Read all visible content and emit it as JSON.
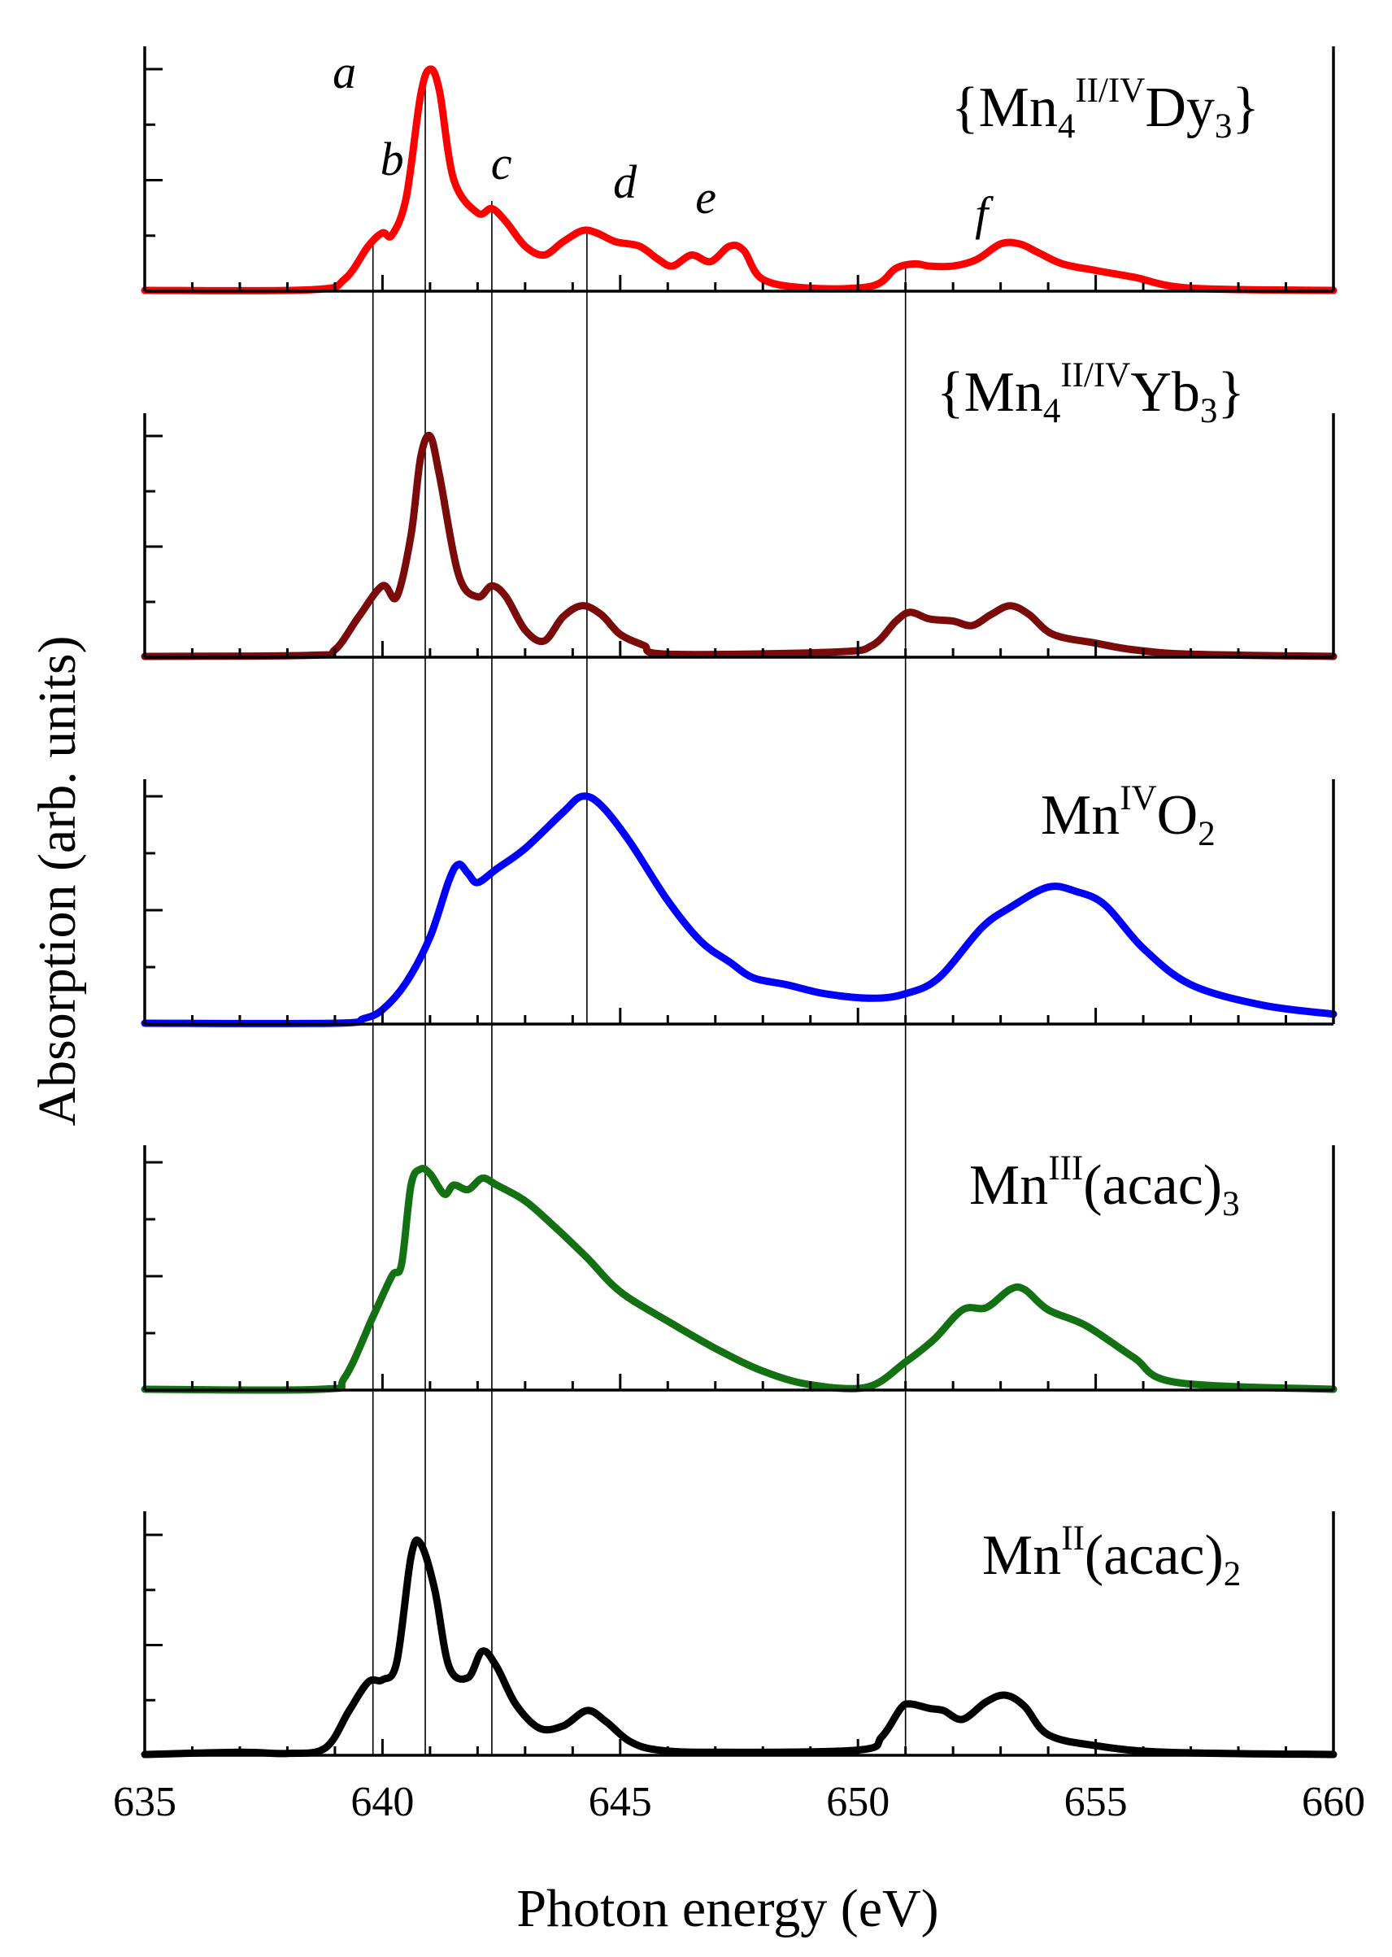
{
  "chart_data": {
    "type": "line",
    "stacked_panels": true,
    "xlabel": "Photon energy (eV)",
    "ylabel": "Absorption (arb. units)",
    "xlim": [
      635,
      660
    ],
    "x_ticks": [
      635,
      640,
      645,
      650,
      655,
      660
    ],
    "x_minor_step": 1,
    "ylim": [
      0,
      1
    ],
    "y_ticks_per_panel": 4,
    "grid": false,
    "reference_lines_eV": [
      639.8,
      640.9,
      642.3,
      644.3,
      651.0
    ],
    "peak_labels": [
      {
        "label": "a",
        "x": 639.2
      },
      {
        "label": "b",
        "x": 640.2
      },
      {
        "label": "c",
        "x": 642.5
      },
      {
        "label": "d",
        "x": 645.1
      },
      {
        "label": "e",
        "x": 646.8
      },
      {
        "label": "f",
        "x": 652.6
      }
    ],
    "series": [
      {
        "name": "{Mn4 II/IV Dy3}",
        "label_parts": {
          "base": "{Mn",
          "sub1": "4",
          "sup": "II/IV",
          "mid": "Dy",
          "sub2": "3",
          "end": "}"
        },
        "color": "#ff0000",
        "points": [
          [
            635,
            0
          ],
          [
            638.5,
            0.003
          ],
          [
            639.2,
            0.05
          ],
          [
            639.7,
            0.2
          ],
          [
            640.0,
            0.26
          ],
          [
            640.2,
            0.25
          ],
          [
            640.5,
            0.42
          ],
          [
            640.8,
            0.88
          ],
          [
            641.0,
            1.0
          ],
          [
            641.2,
            0.9
          ],
          [
            641.5,
            0.5
          ],
          [
            642.0,
            0.35
          ],
          [
            642.3,
            0.37
          ],
          [
            642.6,
            0.31
          ],
          [
            643.0,
            0.2
          ],
          [
            643.4,
            0.16
          ],
          [
            643.8,
            0.22
          ],
          [
            644.2,
            0.27
          ],
          [
            644.5,
            0.26
          ],
          [
            644.9,
            0.22
          ],
          [
            645.4,
            0.2
          ],
          [
            645.8,
            0.14
          ],
          [
            646.1,
            0.11
          ],
          [
            646.5,
            0.16
          ],
          [
            646.9,
            0.13
          ],
          [
            647.3,
            0.2
          ],
          [
            647.6,
            0.18
          ],
          [
            648.0,
            0.05
          ],
          [
            649.0,
            0.01
          ],
          [
            650.3,
            0.02
          ],
          [
            650.8,
            0.1
          ],
          [
            651.2,
            0.12
          ],
          [
            651.5,
            0.11
          ],
          [
            652.0,
            0.11
          ],
          [
            652.5,
            0.14
          ],
          [
            653.0,
            0.21
          ],
          [
            653.4,
            0.21
          ],
          [
            653.8,
            0.17
          ],
          [
            654.3,
            0.12
          ],
          [
            655.0,
            0.09
          ],
          [
            655.8,
            0.06
          ],
          [
            657.0,
            0.01
          ],
          [
            660,
            0
          ]
        ]
      },
      {
        "name": "{Mn4 II/IV Yb3}",
        "label_parts": {
          "base": "{Mn",
          "sub1": "4",
          "sup": "II/IV",
          "mid": "Yb",
          "sub2": "3",
          "end": "}"
        },
        "color": "#7b0a0a",
        "points": [
          [
            635,
            0
          ],
          [
            638.5,
            0.005
          ],
          [
            639.0,
            0.03
          ],
          [
            639.5,
            0.18
          ],
          [
            640.0,
            0.32
          ],
          [
            640.3,
            0.27
          ],
          [
            640.6,
            0.55
          ],
          [
            640.8,
            0.9
          ],
          [
            641.0,
            1.0
          ],
          [
            641.2,
            0.82
          ],
          [
            641.6,
            0.37
          ],
          [
            642.0,
            0.27
          ],
          [
            642.3,
            0.32
          ],
          [
            642.6,
            0.27
          ],
          [
            643.0,
            0.12
          ],
          [
            643.4,
            0.07
          ],
          [
            643.8,
            0.18
          ],
          [
            644.2,
            0.23
          ],
          [
            644.6,
            0.19
          ],
          [
            645.0,
            0.1
          ],
          [
            645.5,
            0.05
          ],
          [
            646.0,
            0.01
          ],
          [
            649.5,
            0.02
          ],
          [
            650.3,
            0.05
          ],
          [
            650.8,
            0.16
          ],
          [
            651.1,
            0.2
          ],
          [
            651.5,
            0.17
          ],
          [
            652.0,
            0.16
          ],
          [
            652.4,
            0.14
          ],
          [
            652.8,
            0.19
          ],
          [
            653.2,
            0.23
          ],
          [
            653.6,
            0.19
          ],
          [
            654.1,
            0.1
          ],
          [
            655.0,
            0.06
          ],
          [
            655.8,
            0.03
          ],
          [
            657.0,
            0.01
          ],
          [
            660,
            0
          ]
        ]
      },
      {
        "name": "MnIVO2",
        "label_parts": {
          "base": "Mn",
          "sup": "IV",
          "mid": "O",
          "sub2": "2",
          "end": ""
        },
        "color": "#0000ff",
        "points": [
          [
            635,
            0
          ],
          [
            639.0,
            0.0
          ],
          [
            639.6,
            0.02
          ],
          [
            640.0,
            0.06
          ],
          [
            640.5,
            0.18
          ],
          [
            641.0,
            0.38
          ],
          [
            641.4,
            0.63
          ],
          [
            641.6,
            0.7
          ],
          [
            641.8,
            0.66
          ],
          [
            642.0,
            0.62
          ],
          [
            642.4,
            0.68
          ],
          [
            643.0,
            0.77
          ],
          [
            643.8,
            0.93
          ],
          [
            644.2,
            1.0
          ],
          [
            644.6,
            0.96
          ],
          [
            645.2,
            0.8
          ],
          [
            646.0,
            0.54
          ],
          [
            646.7,
            0.36
          ],
          [
            647.3,
            0.27
          ],
          [
            647.8,
            0.2
          ],
          [
            648.5,
            0.17
          ],
          [
            649.3,
            0.13
          ],
          [
            650.3,
            0.11
          ],
          [
            651.0,
            0.13
          ],
          [
            651.7,
            0.2
          ],
          [
            652.6,
            0.42
          ],
          [
            653.2,
            0.51
          ],
          [
            654.0,
            0.6
          ],
          [
            654.6,
            0.58
          ],
          [
            655.2,
            0.52
          ],
          [
            656.0,
            0.33
          ],
          [
            657.0,
            0.17
          ],
          [
            658.5,
            0.08
          ],
          [
            660,
            0.04
          ]
        ]
      },
      {
        "name": "MnIII(acac)3",
        "label_parts": {
          "base": "Mn",
          "sup": "III",
          "mid": "(acac)",
          "sub2": "3",
          "end": ""
        },
        "color": "#137113",
        "points": [
          [
            635,
            0
          ],
          [
            638.7,
            0.0
          ],
          [
            639.2,
            0.05
          ],
          [
            639.8,
            0.32
          ],
          [
            640.2,
            0.5
          ],
          [
            640.4,
            0.55
          ],
          [
            640.6,
            0.9
          ],
          [
            640.8,
            0.97
          ],
          [
            641.0,
            0.95
          ],
          [
            641.3,
            0.86
          ],
          [
            641.5,
            0.9
          ],
          [
            641.8,
            0.88
          ],
          [
            642.1,
            0.93
          ],
          [
            642.4,
            0.9
          ],
          [
            643.0,
            0.83
          ],
          [
            643.6,
            0.72
          ],
          [
            644.3,
            0.58
          ],
          [
            645.0,
            0.43
          ],
          [
            646.0,
            0.3
          ],
          [
            647.0,
            0.18
          ],
          [
            648.0,
            0.08
          ],
          [
            649.0,
            0.02
          ],
          [
            650.2,
            0.01
          ],
          [
            651.0,
            0.12
          ],
          [
            651.6,
            0.22
          ],
          [
            652.2,
            0.35
          ],
          [
            652.7,
            0.36
          ],
          [
            653.2,
            0.44
          ],
          [
            653.5,
            0.44
          ],
          [
            654.0,
            0.35
          ],
          [
            654.8,
            0.28
          ],
          [
            655.8,
            0.14
          ],
          [
            656.7,
            0.03
          ],
          [
            660,
            0
          ]
        ]
      },
      {
        "name": "MnII(acac)2",
        "label_parts": {
          "base": "Mn",
          "sup": "II",
          "mid": "(acac)",
          "sub2": "2",
          "end": ""
        },
        "color": "#000000",
        "points": [
          [
            635,
            0
          ],
          [
            637,
            0.01
          ],
          [
            638,
            0.005
          ],
          [
            638.8,
            0.03
          ],
          [
            639.3,
            0.2
          ],
          [
            639.7,
            0.33
          ],
          [
            640.0,
            0.34
          ],
          [
            640.3,
            0.42
          ],
          [
            640.6,
            0.9
          ],
          [
            640.8,
            0.96
          ],
          [
            641.1,
            0.75
          ],
          [
            641.4,
            0.4
          ],
          [
            641.8,
            0.35
          ],
          [
            642.1,
            0.47
          ],
          [
            642.4,
            0.4
          ],
          [
            642.8,
            0.23
          ],
          [
            643.3,
            0.12
          ],
          [
            643.8,
            0.13
          ],
          [
            644.3,
            0.2
          ],
          [
            644.7,
            0.15
          ],
          [
            645.2,
            0.06
          ],
          [
            645.8,
            0.02
          ],
          [
            647.0,
            0.01
          ],
          [
            650.0,
            0.02
          ],
          [
            650.5,
            0.08
          ],
          [
            650.9,
            0.21
          ],
          [
            651.1,
            0.23
          ],
          [
            651.5,
            0.21
          ],
          [
            651.8,
            0.2
          ],
          [
            652.2,
            0.16
          ],
          [
            652.7,
            0.24
          ],
          [
            653.1,
            0.27
          ],
          [
            653.5,
            0.22
          ],
          [
            654.0,
            0.09
          ],
          [
            655.0,
            0.04
          ],
          [
            656.5,
            0.01
          ],
          [
            660,
            0
          ]
        ]
      }
    ]
  }
}
